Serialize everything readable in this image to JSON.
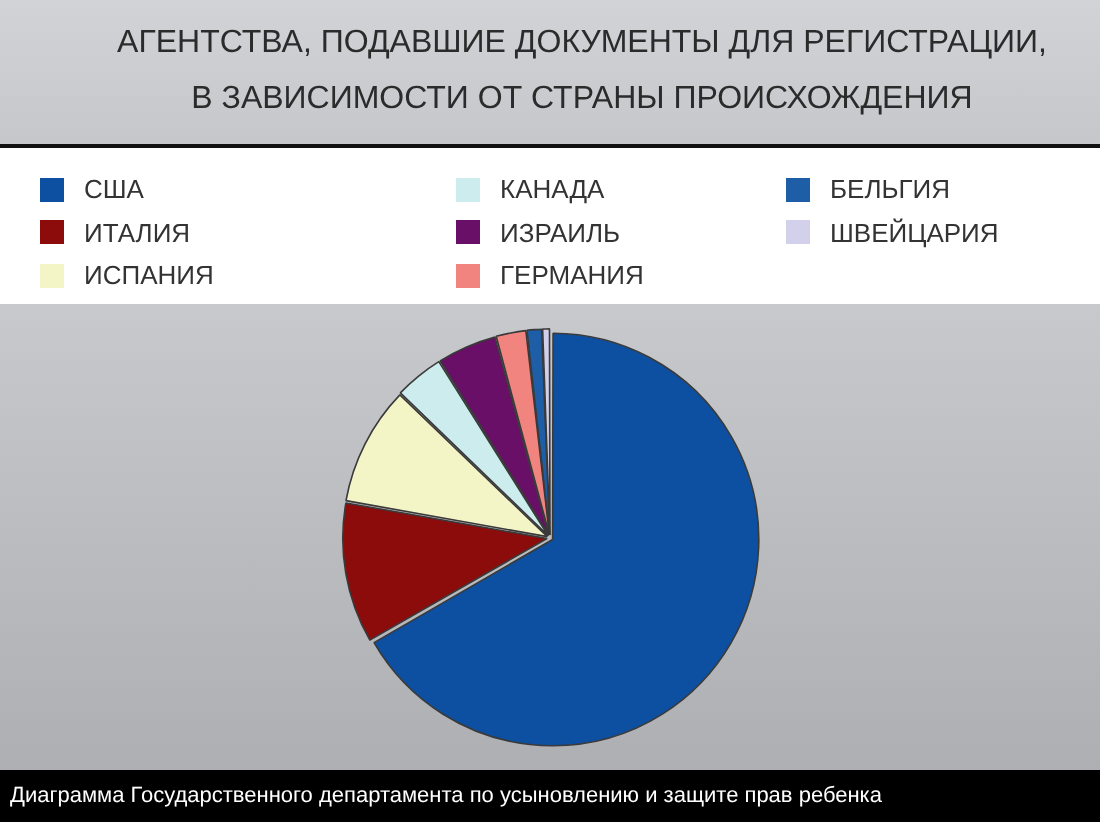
{
  "chart_data": {
    "type": "pie",
    "title": "АГЕНТСТВА, ПОДАВШИЕ ДОКУМЕНТЫ ДЛЯ РЕГИСТРАЦИИ,\nВ ЗАВИСИМОСТИ ОТ СТРАНЫ ПРОИСХОЖДЕНИЯ",
    "categories": [
      "США",
      "ИТАЛИЯ",
      "ИСПАНИЯ",
      "КАНАДА",
      "ИЗРАИЛЬ",
      "ГЕРМАНИЯ",
      "БЕЛЬГИЯ",
      "ШВЕЙЦАРИЯ"
    ],
    "values": [
      66.7,
      11.1,
      9.4,
      3.9,
      4.7,
      2.4,
      1.2,
      0.6
    ],
    "colors": [
      "#0d4fa1",
      "#8c0c0c",
      "#f4f5c6",
      "#cdecee",
      "#690f68",
      "#f28480",
      "#1e5ea6",
      "#d2d0ea"
    ],
    "legend": "top",
    "annotations": [
      "Диаграмма Государственного департамента по усыновлению и защите прав ребенка"
    ]
  }
}
